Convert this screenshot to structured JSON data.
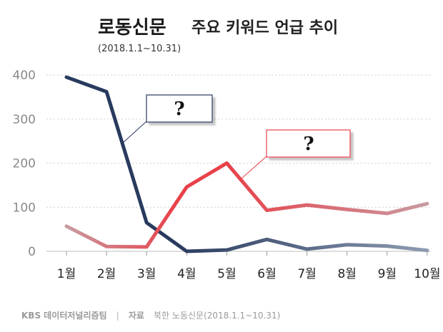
{
  "header": {
    "newspaper": "로동신문",
    "title": "주요 키워드 언급 추이",
    "period": "(2018.1.1~10.31)"
  },
  "chart_data": {
    "type": "line",
    "categories": [
      "1월",
      "2월",
      "3월",
      "4월",
      "5월",
      "6월",
      "7월",
      "8월",
      "9월",
      "10월"
    ],
    "ylim": [
      0,
      400
    ],
    "yticks": [
      0,
      100,
      200,
      300,
      400
    ],
    "grid": true,
    "series": [
      {
        "color": "#283a5e",
        "fade_color": "#8e9bb1",
        "values": [
          395,
          362,
          65,
          0,
          3,
          27,
          5,
          15,
          12,
          2
        ],
        "annotation": "?"
      },
      {
        "color": "#e8414a",
        "fade_color": "#c99aa0",
        "values": [
          57,
          11,
          10,
          146,
          200,
          93,
          105,
          95,
          86,
          108
        ],
        "annotation": "?"
      }
    ]
  },
  "footer": {
    "brand": "KBS 데이터저널리즘팀",
    "separator": "|",
    "source_label": "자료",
    "source": "북한 노동신문(2018.1.1~10.31)"
  }
}
